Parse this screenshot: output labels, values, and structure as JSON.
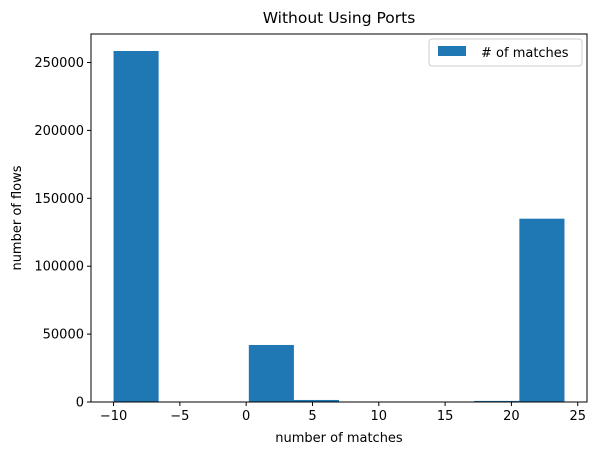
{
  "chart_data": {
    "type": "bar",
    "title": "Without Using Ports",
    "xlabel": "number of matches",
    "ylabel": "number of flows",
    "xlim": [
      -11.7,
      25.7
    ],
    "ylim": [
      0,
      271000
    ],
    "xticks": [
      -10,
      -5,
      0,
      5,
      10,
      15,
      20,
      25
    ],
    "xtick_labels": [
      "−10",
      "−5",
      "0",
      "5",
      "10",
      "15",
      "20",
      "25"
    ],
    "yticks": [
      0,
      50000,
      100000,
      150000,
      200000,
      250000
    ],
    "ytick_labels": [
      "0",
      "50000",
      "100000",
      "150000",
      "200000",
      "250000"
    ],
    "grid": false,
    "legend": {
      "position": "top-right",
      "entries": [
        "# of matches"
      ]
    },
    "series": [
      {
        "name": "# of matches",
        "color": "#1f77b4",
        "bins": [
          {
            "x0": -10.0,
            "x1": -6.6,
            "value": 258500
          },
          {
            "x0": -6.6,
            "x1": -3.2,
            "value": 0
          },
          {
            "x0": -3.2,
            "x1": 0.2,
            "value": 0
          },
          {
            "x0": 0.2,
            "x1": 3.6,
            "value": 42000
          },
          {
            "x0": 3.6,
            "x1": 7.0,
            "value": 1500
          },
          {
            "x0": 7.0,
            "x1": 10.4,
            "value": 300
          },
          {
            "x0": 10.4,
            "x1": 13.8,
            "value": 200
          },
          {
            "x0": 13.8,
            "x1": 17.2,
            "value": 200
          },
          {
            "x0": 17.2,
            "x1": 20.6,
            "value": 800
          },
          {
            "x0": 20.6,
            "x1": 24.0,
            "value": 135000
          }
        ]
      }
    ]
  }
}
